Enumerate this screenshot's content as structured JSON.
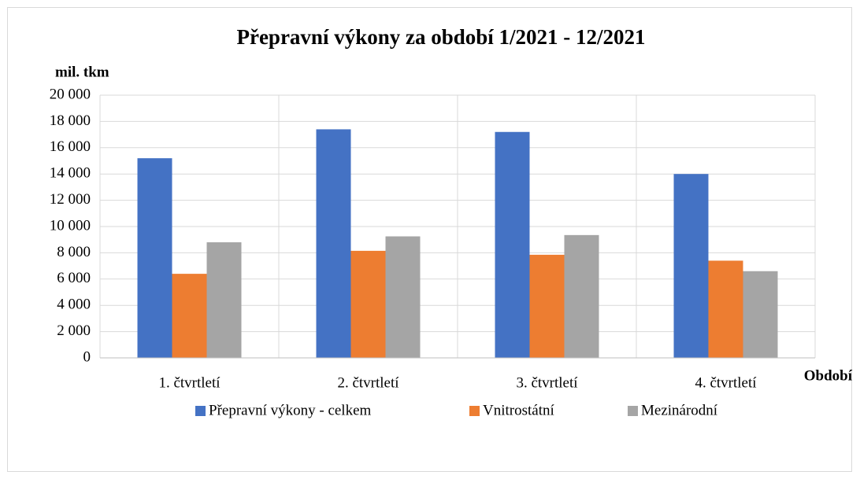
{
  "chart_data": {
    "type": "bar",
    "title": "Přepravní výkony za období 1/2021 - 12/2021",
    "y_axis_label": "mil. tkm",
    "x_axis_label": "Období",
    "categories": [
      "1. čtvrtletí",
      "2. čtvrtletí",
      "3. čtvrtletí",
      "4. čtvrtletí"
    ],
    "series": [
      {
        "name": "Přepravní výkony - celkem",
        "color": "#4472c4",
        "values": [
          15200,
          17400,
          17200,
          14000
        ]
      },
      {
        "name": "Vnitrostátní",
        "color": "#ed7d31",
        "values": [
          6400,
          8150,
          7850,
          7400
        ]
      },
      {
        "name": "Mezinárodní",
        "color": "#a5a5a5",
        "values": [
          8800,
          9250,
          9350,
          6600
        ]
      }
    ],
    "ylim": [
      0,
      20000
    ],
    "yticks": [
      0,
      {
        "value": 2000,
        "label": "2 000"
      },
      {
        "value": 4000,
        "label": "4 000"
      },
      {
        "value": 6000,
        "label": "6 000"
      },
      {
        "value": 8000,
        "label": "8 000"
      },
      {
        "value": 10000,
        "label": "10 000"
      },
      {
        "value": 12000,
        "label": "12 000"
      },
      {
        "value": 14000,
        "label": "14 000"
      },
      {
        "value": 16000,
        "label": "16 000"
      },
      {
        "value": 18000,
        "label": "18 000"
      },
      {
        "value": 20000,
        "label": "20 000"
      }
    ],
    "grid": true,
    "legend": "bottom"
  }
}
